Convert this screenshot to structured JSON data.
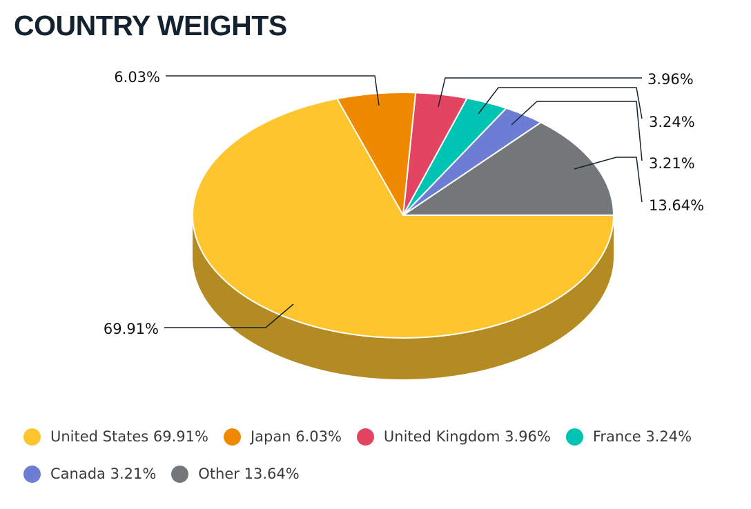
{
  "title": "COUNTRY WEIGHTS",
  "chart_data": {
    "type": "pie",
    "title": "COUNTRY WEIGHTS",
    "style": "3d",
    "legend_position": "bottom",
    "slices": [
      {
        "name": "United States",
        "value": 69.91,
        "label": "69.91%",
        "legend": "United States 69.91%",
        "color": "#FFC52E"
      },
      {
        "name": "Japan",
        "value": 6.03,
        "label": "6.03%",
        "legend": "Japan 6.03%",
        "color": "#EF8A00"
      },
      {
        "name": "United Kingdom",
        "value": 3.96,
        "label": "3.96%",
        "legend": "United Kingdom 3.96%",
        "color": "#E34462"
      },
      {
        "name": "France",
        "value": 3.24,
        "label": "3.24%",
        "legend": "France 3.24%",
        "color": "#00C4B3"
      },
      {
        "name": "Canada",
        "value": 3.21,
        "label": "3.21%",
        "legend": "Canada 3.21%",
        "color": "#6E7DD4"
      },
      {
        "name": "Other",
        "value": 13.64,
        "label": "13.64%",
        "legend": "Other 13.64%",
        "color": "#73777A"
      }
    ],
    "side_color": "#B38B22"
  }
}
